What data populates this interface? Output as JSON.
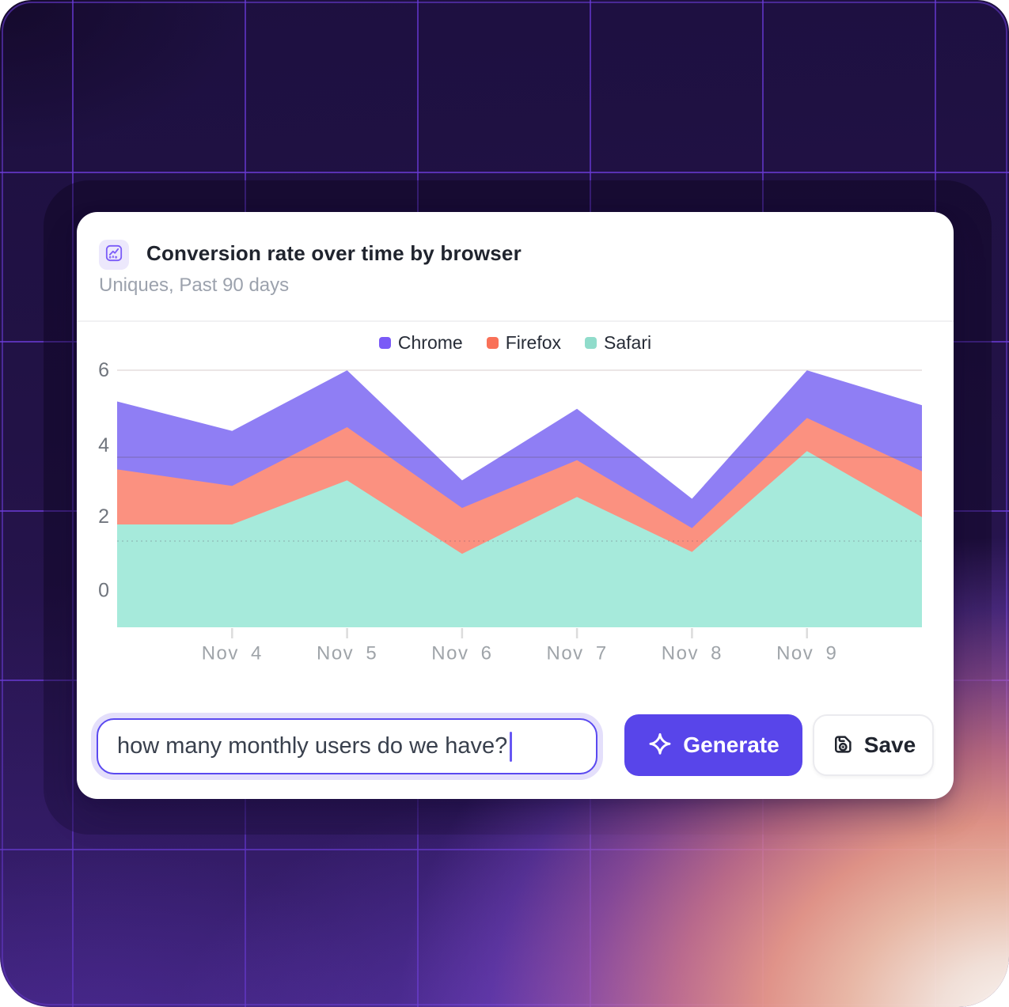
{
  "header": {
    "icon": "line-chart-icon",
    "title": "Conversion rate over time by browser",
    "subtitle": "Uniques, Past 90 days"
  },
  "legend": [
    {
      "label": "Chrome",
      "color": "#7a5af7"
    },
    {
      "label": "Firefox",
      "color": "#f97158"
    },
    {
      "label": "Safari",
      "color": "#90dccb"
    }
  ],
  "chart_data": {
    "type": "area",
    "stacked": true,
    "title": "Conversion rate over time by browser",
    "subtitle": "Uniques, Past 90 days",
    "legend_position": "top-center",
    "grid": "horizontal",
    "x_tick_labels": [
      "Nov 4",
      "Nov 5",
      "Nov 6",
      "Nov 7",
      "Nov 8",
      "Nov 9"
    ],
    "x_points_note": "8 points: unlabeled left edge, Nov 4 through Nov 9, unlabeled right edge",
    "y_tick_labels": [
      "6",
      "4",
      "2",
      "0"
    ],
    "ylim": [
      0,
      6
    ],
    "series": [
      {
        "name": "Safari",
        "fill": "#a6eadb",
        "values": [
          1.8,
          1.8,
          3.0,
          1.0,
          2.55,
          1.05,
          3.8,
          2.0
        ]
      },
      {
        "name": "Firefox",
        "fill": "#fb9180",
        "values": [
          1.5,
          1.05,
          1.45,
          1.25,
          1.0,
          0.65,
          0.9,
          1.25
        ]
      },
      {
        "name": "Chrome",
        "fill": "#8f7ef4",
        "values": [
          1.85,
          1.5,
          1.55,
          0.75,
          1.4,
          0.8,
          1.3,
          1.8
        ]
      }
    ]
  },
  "controls": {
    "prompt_input": {
      "value": "how many monthly users do we have?"
    },
    "generate_button": {
      "label": "Generate",
      "icon": "sparkle-icon",
      "color": "#5845ea"
    },
    "save_button": {
      "label": "Save",
      "icon": "save-icon"
    }
  }
}
